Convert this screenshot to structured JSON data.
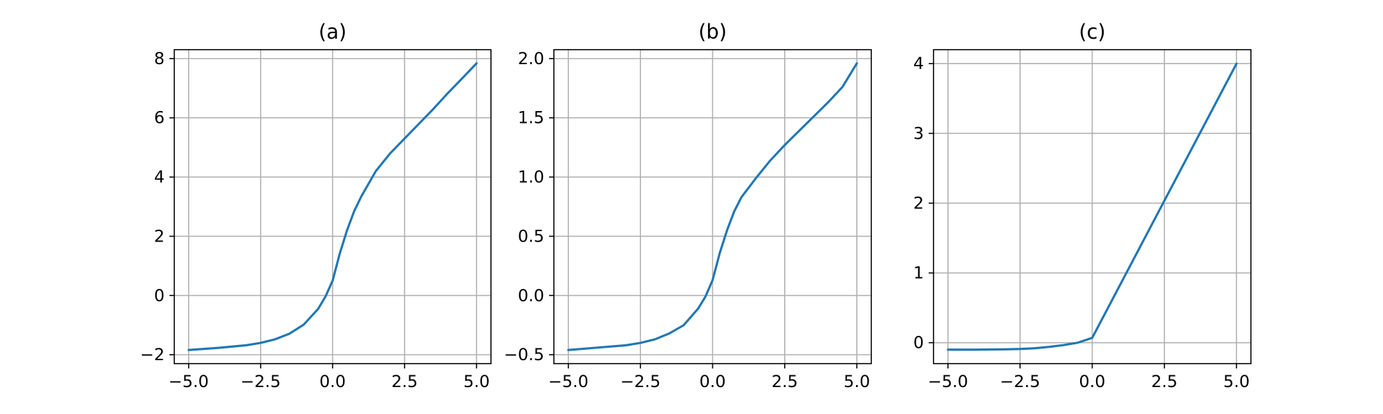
{
  "chart_data": [
    {
      "type": "line",
      "title": "(a)",
      "xlabel": "",
      "ylabel": "",
      "xlim": [
        -5.5,
        5.5
      ],
      "ylim": [
        -2.3,
        8.3
      ],
      "xticks": [
        -5.0,
        -2.5,
        0.0,
        2.5,
        5.0
      ],
      "xtick_labels": [
        "−5.0",
        "−2.5",
        "0.0",
        "2.5",
        "5.0"
      ],
      "yticks": [
        -2,
        0,
        2,
        4,
        6,
        8
      ],
      "ytick_labels": [
        "−2",
        "0",
        "2",
        "4",
        "6",
        "8"
      ],
      "grid": true,
      "legend": "none",
      "series": [
        {
          "color": "#1f77b4",
          "x": [
            -5.0,
            -4.0,
            -3.0,
            -2.5,
            -2.0,
            -1.5,
            -1.0,
            -0.5,
            -0.25,
            0.0,
            0.25,
            0.5,
            0.75,
            1.0,
            1.5,
            2.0,
            2.5,
            3.0,
            3.5,
            4.0,
            4.5,
            5.0
          ],
          "y": [
            -1.84,
            -1.77,
            -1.68,
            -1.6,
            -1.48,
            -1.29,
            -0.98,
            -0.45,
            -0.04,
            0.5,
            1.42,
            2.2,
            2.85,
            3.35,
            4.2,
            4.8,
            5.3,
            5.8,
            6.3,
            6.83,
            7.33,
            7.84
          ]
        }
      ]
    },
    {
      "type": "line",
      "title": "(b)",
      "xlabel": "",
      "ylabel": "",
      "xlim": [
        -5.5,
        5.5
      ],
      "ylim": [
        -0.575,
        2.075
      ],
      "xticks": [
        -5.0,
        -2.5,
        0.0,
        2.5,
        5.0
      ],
      "xtick_labels": [
        "−5.0",
        "−2.5",
        "0.0",
        "2.5",
        "5.0"
      ],
      "yticks": [
        -0.5,
        0.0,
        0.5,
        1.0,
        1.5,
        2.0
      ],
      "ytick_labels": [
        "−0.5",
        "0.0",
        "0.5",
        "1.0",
        "1.5",
        "2.0"
      ],
      "grid": true,
      "legend": "none",
      "series": [
        {
          "color": "#1f77b4",
          "x": [
            -5.0,
            -4.0,
            -3.0,
            -2.5,
            -2.0,
            -1.5,
            -1.0,
            -0.5,
            -0.25,
            0.0,
            0.25,
            0.5,
            0.75,
            1.0,
            1.5,
            2.0,
            2.5,
            3.0,
            3.5,
            4.0,
            4.5,
            5.0
          ],
          "y": [
            -0.46,
            -0.44,
            -0.42,
            -0.4,
            -0.37,
            -0.32,
            -0.25,
            -0.11,
            -0.01,
            0.13,
            0.36,
            0.55,
            0.71,
            0.83,
            0.99,
            1.14,
            1.27,
            1.39,
            1.51,
            1.63,
            1.76,
            1.96
          ]
        }
      ]
    },
    {
      "type": "line",
      "title": "(c)",
      "xlabel": "",
      "ylabel": "",
      "xlim": [
        -5.5,
        5.5
      ],
      "ylim": [
        -0.3,
        4.2
      ],
      "xticks": [
        -5.0,
        -2.5,
        0.0,
        2.5,
        5.0
      ],
      "xtick_labels": [
        "−5.0",
        "−2.5",
        "0.0",
        "2.5",
        "5.0"
      ],
      "yticks": [
        0,
        1,
        2,
        3,
        4
      ],
      "ytick_labels": [
        "0",
        "1",
        "2",
        "3",
        "4"
      ],
      "grid": true,
      "legend": "none",
      "series": [
        {
          "color": "#1f77b4",
          "x": [
            -5.0,
            -4.0,
            -3.0,
            -2.5,
            -2.0,
            -1.5,
            -1.0,
            -0.5,
            0.0,
            5.0
          ],
          "y": [
            -0.1,
            -0.1,
            -0.095,
            -0.09,
            -0.08,
            -0.06,
            -0.035,
            0.0,
            0.07,
            4.0
          ]
        }
      ]
    }
  ]
}
